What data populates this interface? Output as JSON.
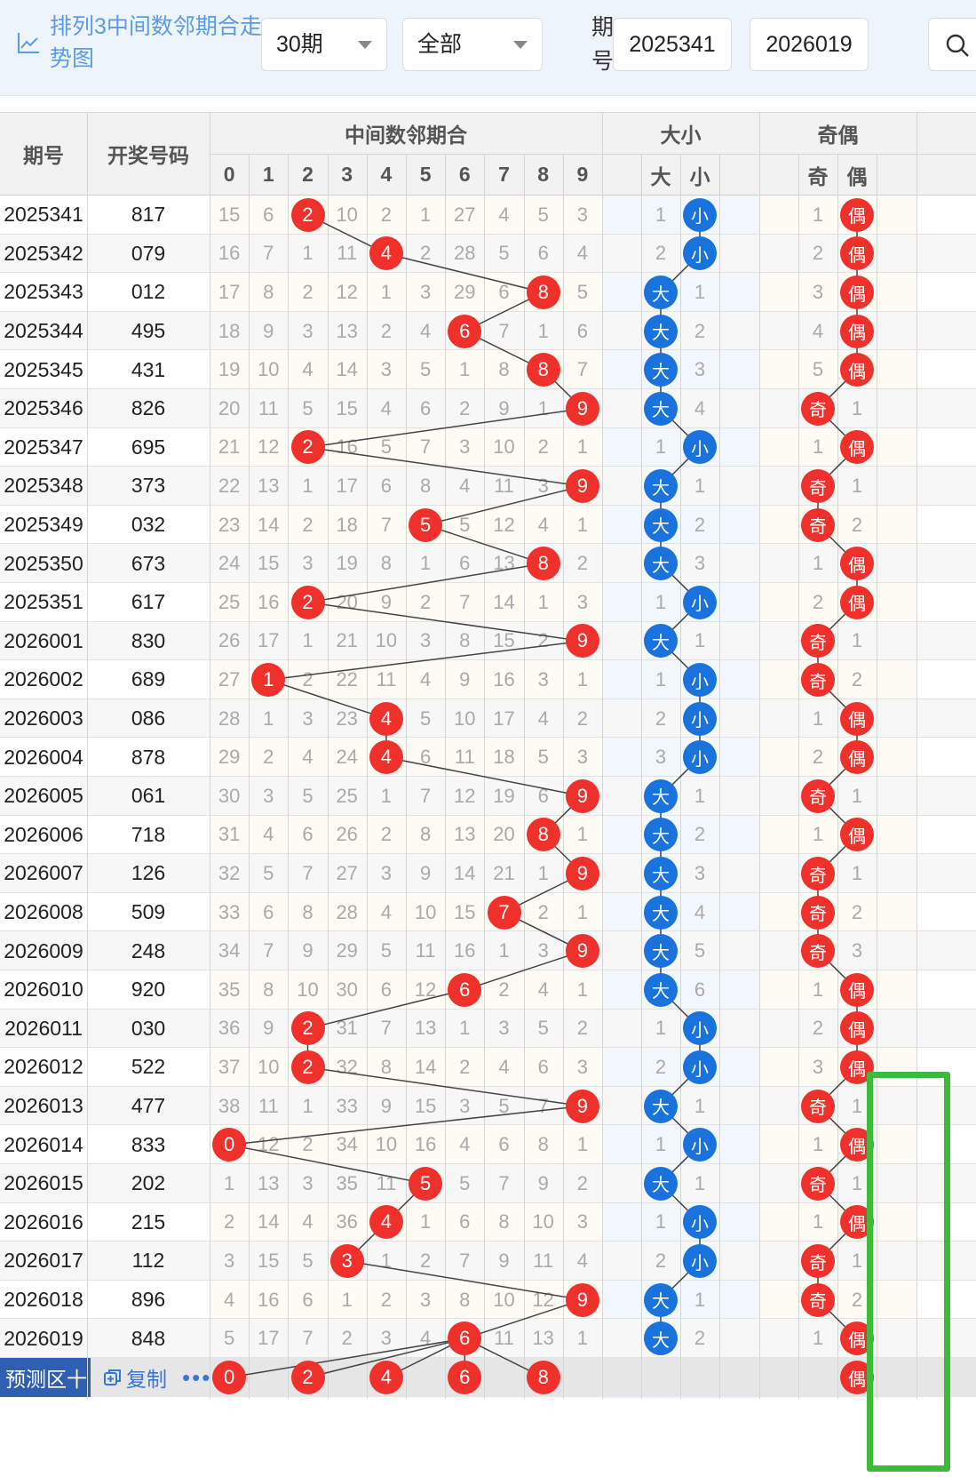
{
  "toolbar": {
    "title": "排列3中间数邻期合走势图",
    "periods_select": "30期",
    "scope_select": "全部",
    "issue_label": "期号:",
    "issue_from": "2025341",
    "issue_dash": "-",
    "issue_to": "2026019"
  },
  "table": {
    "col_issue": "期号",
    "col_number": "开奖号码",
    "group_mid": "中间数邻期合",
    "group_size": "大小",
    "group_parity": "奇偶",
    "digits": [
      "0",
      "1",
      "2",
      "3",
      "4",
      "5",
      "6",
      "7",
      "8",
      "9"
    ],
    "size_labels": [
      "大",
      "小"
    ],
    "parity_labels": [
      "奇",
      "偶"
    ]
  },
  "rows": [
    {
      "issue": "2025341",
      "number": "817",
      "mid": [
        15,
        6,
        "*",
        10,
        2,
        1,
        27,
        4,
        5,
        3
      ],
      "mid_value": 2,
      "size": [
        1,
        "*"
      ],
      "size_hit": "小",
      "parity": [
        1,
        "*"
      ],
      "parity_hit": "偶"
    },
    {
      "issue": "2025342",
      "number": "079",
      "mid": [
        16,
        7,
        1,
        11,
        "*",
        2,
        28,
        5,
        6,
        4
      ],
      "mid_value": 4,
      "size": [
        2,
        "*"
      ],
      "size_hit": "小",
      "parity": [
        2,
        "*"
      ],
      "parity_hit": "偶"
    },
    {
      "issue": "2025343",
      "number": "012",
      "mid": [
        17,
        8,
        2,
        12,
        1,
        3,
        29,
        6,
        "*",
        5
      ],
      "mid_value": 8,
      "size": [
        "*",
        1
      ],
      "size_hit": "大",
      "parity": [
        3,
        "*"
      ],
      "parity_hit": "偶"
    },
    {
      "issue": "2025344",
      "number": "495",
      "mid": [
        18,
        9,
        3,
        13,
        2,
        4,
        "*",
        7,
        1,
        6
      ],
      "mid_value": 6,
      "size": [
        "*",
        2
      ],
      "size_hit": "大",
      "parity": [
        4,
        "*"
      ],
      "parity_hit": "偶"
    },
    {
      "issue": "2025345",
      "number": "431",
      "mid": [
        19,
        10,
        4,
        14,
        3,
        5,
        1,
        8,
        "*",
        7
      ],
      "mid_value": 8,
      "size": [
        "*",
        3
      ],
      "size_hit": "大",
      "parity": [
        5,
        "*"
      ],
      "parity_hit": "偶"
    },
    {
      "issue": "2025346",
      "number": "826",
      "mid": [
        20,
        11,
        5,
        15,
        4,
        6,
        2,
        9,
        1,
        "*"
      ],
      "mid_value": 9,
      "size": [
        "*",
        4
      ],
      "size_hit": "大",
      "parity": [
        "*",
        1
      ],
      "parity_hit": "奇"
    },
    {
      "issue": "2025347",
      "number": "695",
      "mid": [
        21,
        12,
        "*",
        16,
        5,
        7,
        3,
        10,
        2,
        1
      ],
      "mid_value": 2,
      "size": [
        1,
        "*"
      ],
      "size_hit": "小",
      "parity": [
        1,
        "*"
      ],
      "parity_hit": "偶"
    },
    {
      "issue": "2025348",
      "number": "373",
      "mid": [
        22,
        13,
        1,
        17,
        6,
        8,
        4,
        11,
        3,
        "*"
      ],
      "mid_value": 9,
      "size": [
        "*",
        1
      ],
      "size_hit": "大",
      "parity": [
        "*",
        1
      ],
      "parity_hit": "奇"
    },
    {
      "issue": "2025349",
      "number": "032",
      "mid": [
        23,
        14,
        2,
        18,
        7,
        "*",
        5,
        12,
        4,
        1
      ],
      "mid_value": 5,
      "size": [
        "*",
        2
      ],
      "size_hit": "大",
      "parity": [
        "*",
        2
      ],
      "parity_hit": "奇"
    },
    {
      "issue": "2025350",
      "number": "673",
      "mid": [
        24,
        15,
        3,
        19,
        8,
        1,
        6,
        13,
        "*",
        2
      ],
      "mid_value": 8,
      "size": [
        "*",
        3
      ],
      "size_hit": "大",
      "parity": [
        1,
        "*"
      ],
      "parity_hit": "偶"
    },
    {
      "issue": "2025351",
      "number": "617",
      "mid": [
        25,
        16,
        "*",
        20,
        9,
        2,
        7,
        14,
        1,
        3
      ],
      "mid_value": 2,
      "size": [
        1,
        "*"
      ],
      "size_hit": "小",
      "parity": [
        2,
        "*"
      ],
      "parity_hit": "偶"
    },
    {
      "issue": "2026001",
      "number": "830",
      "mid": [
        26,
        17,
        1,
        21,
        10,
        3,
        8,
        15,
        2,
        "*"
      ],
      "mid_value": 9,
      "size": [
        "*",
        1
      ],
      "size_hit": "大",
      "parity": [
        "*",
        1
      ],
      "parity_hit": "奇"
    },
    {
      "issue": "2026002",
      "number": "689",
      "mid": [
        27,
        "*",
        2,
        22,
        11,
        4,
        9,
        16,
        3,
        1
      ],
      "mid_value": 1,
      "size": [
        1,
        "*"
      ],
      "size_hit": "小",
      "parity": [
        "*",
        2
      ],
      "parity_hit": "奇"
    },
    {
      "issue": "2026003",
      "number": "086",
      "mid": [
        28,
        1,
        3,
        23,
        "*",
        5,
        10,
        17,
        4,
        2
      ],
      "mid_value": 4,
      "size": [
        2,
        "*"
      ],
      "size_hit": "小",
      "parity": [
        1,
        "*"
      ],
      "parity_hit": "偶"
    },
    {
      "issue": "2026004",
      "number": "878",
      "mid": [
        29,
        2,
        4,
        24,
        "*",
        6,
        11,
        18,
        5,
        3
      ],
      "mid_value": 4,
      "size": [
        3,
        "*"
      ],
      "size_hit": "小",
      "parity": [
        2,
        "*"
      ],
      "parity_hit": "偶"
    },
    {
      "issue": "2026005",
      "number": "061",
      "mid": [
        30,
        3,
        5,
        25,
        1,
        7,
        12,
        19,
        6,
        "*"
      ],
      "mid_value": 9,
      "size": [
        "*",
        1
      ],
      "size_hit": "大",
      "parity": [
        "*",
        1
      ],
      "parity_hit": "奇"
    },
    {
      "issue": "2026006",
      "number": "718",
      "mid": [
        31,
        4,
        6,
        26,
        2,
        8,
        13,
        20,
        "*",
        1
      ],
      "mid_value": 8,
      "size": [
        "*",
        2
      ],
      "size_hit": "大",
      "parity": [
        1,
        "*"
      ],
      "parity_hit": "偶"
    },
    {
      "issue": "2026007",
      "number": "126",
      "mid": [
        32,
        5,
        7,
        27,
        3,
        9,
        14,
        21,
        1,
        "*"
      ],
      "mid_value": 9,
      "size": [
        "*",
        3
      ],
      "size_hit": "大",
      "parity": [
        "*",
        1
      ],
      "parity_hit": "奇"
    },
    {
      "issue": "2026008",
      "number": "509",
      "mid": [
        33,
        6,
        8,
        28,
        4,
        10,
        15,
        "*",
        2,
        1
      ],
      "mid_value": 7,
      "size": [
        "*",
        4
      ],
      "size_hit": "大",
      "parity": [
        "*",
        2
      ],
      "parity_hit": "奇"
    },
    {
      "issue": "2026009",
      "number": "248",
      "mid": [
        34,
        7,
        9,
        29,
        5,
        11,
        16,
        1,
        3,
        "*"
      ],
      "mid_value": 9,
      "size": [
        "*",
        5
      ],
      "size_hit": "大",
      "parity": [
        "*",
        3
      ],
      "parity_hit": "奇"
    },
    {
      "issue": "2026010",
      "number": "920",
      "mid": [
        35,
        8,
        10,
        30,
        6,
        12,
        "*",
        2,
        4,
        1
      ],
      "mid_value": 6,
      "size": [
        "*",
        6
      ],
      "size_hit": "大",
      "parity": [
        1,
        "*"
      ],
      "parity_hit": "偶"
    },
    {
      "issue": "2026011",
      "number": "030",
      "mid": [
        36,
        9,
        "*",
        31,
        7,
        13,
        1,
        3,
        5,
        2
      ],
      "mid_value": 2,
      "size": [
        1,
        "*"
      ],
      "size_hit": "小",
      "parity": [
        2,
        "*"
      ],
      "parity_hit": "偶"
    },
    {
      "issue": "2026012",
      "number": "522",
      "mid": [
        37,
        10,
        "*",
        32,
        8,
        14,
        2,
        4,
        6,
        3
      ],
      "mid_value": 2,
      "size": [
        2,
        "*"
      ],
      "size_hit": "小",
      "parity": [
        3,
        "*"
      ],
      "parity_hit": "偶"
    },
    {
      "issue": "2026013",
      "number": "477",
      "mid": [
        38,
        11,
        1,
        33,
        9,
        15,
        3,
        5,
        7,
        "*"
      ],
      "mid_value": 9,
      "size": [
        "*",
        1
      ],
      "size_hit": "大",
      "parity": [
        "*",
        1
      ],
      "parity_hit": "奇"
    },
    {
      "issue": "2026014",
      "number": "833",
      "mid": [
        "*",
        12,
        2,
        34,
        10,
        16,
        4,
        6,
        8,
        1
      ],
      "mid_value": 0,
      "size": [
        1,
        "*"
      ],
      "size_hit": "小",
      "parity": [
        1,
        "*"
      ],
      "parity_hit": "偶"
    },
    {
      "issue": "2026015",
      "number": "202",
      "mid": [
        1,
        13,
        3,
        35,
        11,
        "*",
        5,
        7,
        9,
        2
      ],
      "mid_value": 5,
      "size": [
        "*",
        1
      ],
      "size_hit": "大",
      "parity": [
        "*",
        1
      ],
      "parity_hit": "奇"
    },
    {
      "issue": "2026016",
      "number": "215",
      "mid": [
        2,
        14,
        4,
        36,
        "*",
        1,
        6,
        8,
        10,
        3
      ],
      "mid_value": 4,
      "size": [
        1,
        "*"
      ],
      "size_hit": "小",
      "parity": [
        1,
        "*"
      ],
      "parity_hit": "偶"
    },
    {
      "issue": "2026017",
      "number": "112",
      "mid": [
        3,
        15,
        5,
        "*",
        1,
        2,
        7,
        9,
        11,
        4
      ],
      "mid_value": 3,
      "size": [
        2,
        "*"
      ],
      "size_hit": "小",
      "parity": [
        "*",
        1
      ],
      "parity_hit": "奇"
    },
    {
      "issue": "2026018",
      "number": "896",
      "mid": [
        4,
        16,
        6,
        1,
        2,
        3,
        8,
        10,
        12,
        "*"
      ],
      "mid_value": 9,
      "size": [
        "*",
        1
      ],
      "size_hit": "大",
      "parity": [
        "*",
        2
      ],
      "parity_hit": "奇"
    },
    {
      "issue": "2026019",
      "number": "848",
      "mid": [
        5,
        17,
        7,
        2,
        3,
        4,
        "*",
        11,
        13,
        1
      ],
      "mid_value": 6,
      "size": [
        "*",
        2
      ],
      "size_hit": "大",
      "parity": [
        1,
        "*"
      ],
      "parity_hit": "偶"
    }
  ],
  "predict": {
    "label": "预测区十",
    "copy": "复制",
    "more": "•••",
    "balls": [
      "0",
      "2",
      "4",
      "6",
      "8"
    ],
    "parity_ball": "偶"
  },
  "colors": {
    "red_ball": "#f0302a",
    "blue_ball": "#1a72dc",
    "title_blue": "#5b9be8",
    "highlight_box": "#3dba3a"
  },
  "icons": {
    "chart": "line-chart-icon",
    "search": "search-icon",
    "dropdown": "caret-down-icon",
    "copy": "copy-icon"
  }
}
